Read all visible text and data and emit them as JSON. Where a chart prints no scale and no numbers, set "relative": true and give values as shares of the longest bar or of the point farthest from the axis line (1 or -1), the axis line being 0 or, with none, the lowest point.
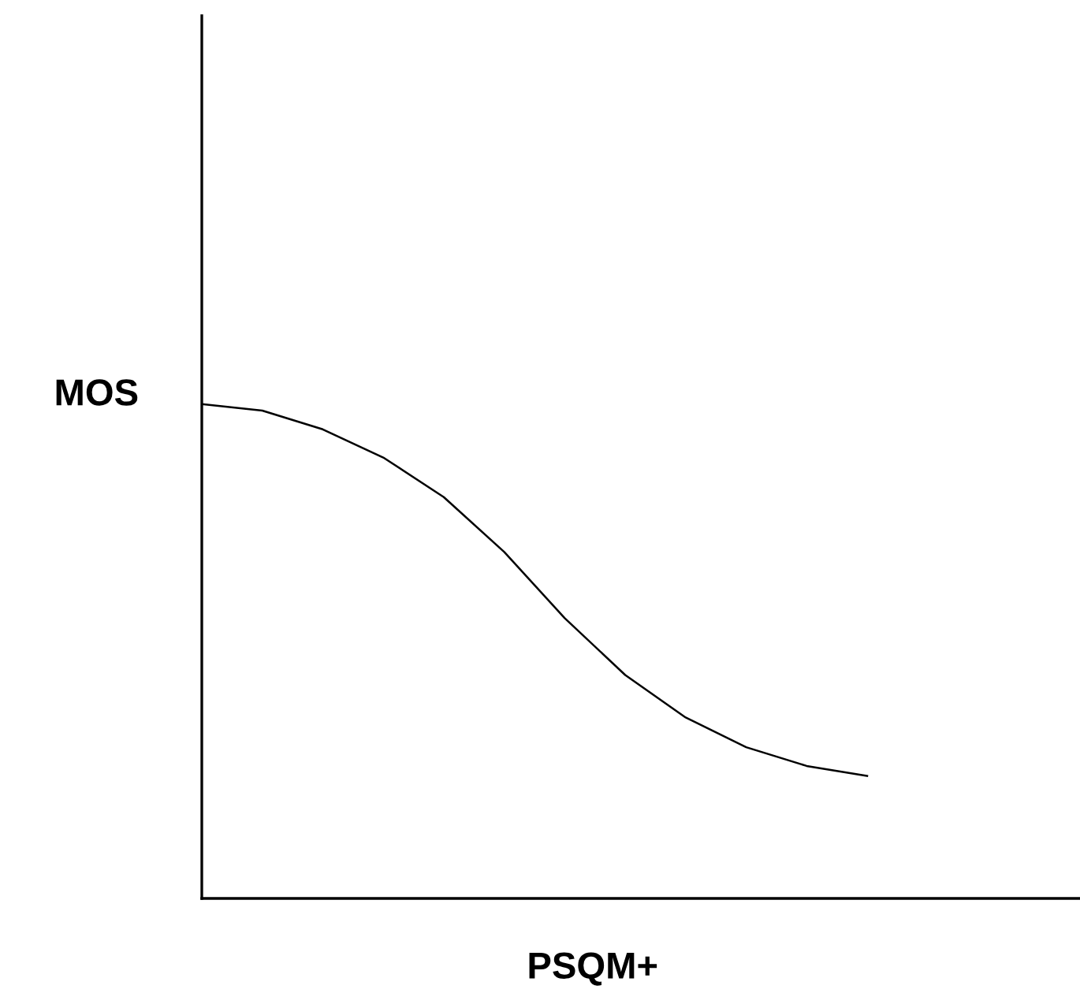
{
  "chart_data": {
    "type": "line",
    "relative": true,
    "xlabel": "PSQM+",
    "ylabel": "MOS",
    "categories": [
      null,
      null,
      null,
      null,
      null,
      null,
      null,
      null,
      null,
      null,
      null,
      null
    ],
    "series": [
      {
        "color": "#000000",
        "values": [
          1,
          0.987,
          0.949,
          0.892,
          0.812,
          0.701,
          0.567,
          0.452,
          0.366,
          0.306,
          0.268,
          0.248
        ]
      }
    ],
    "legend": false,
    "tick_labels": false,
    "marker": "none",
    "line_style": "solid"
  }
}
